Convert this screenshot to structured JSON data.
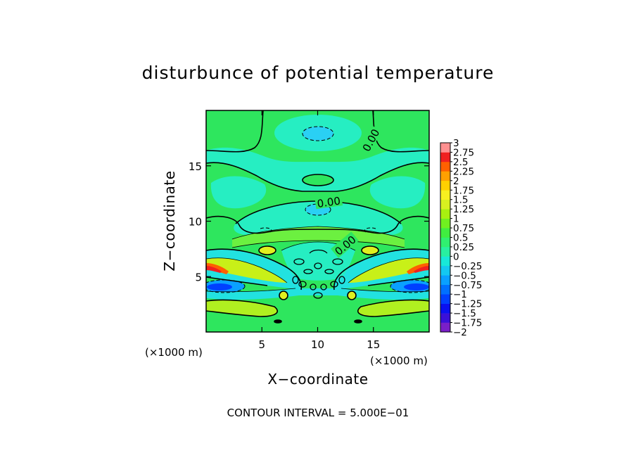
{
  "chart_data": {
    "type": "heatmap",
    "title": "disturbunce of potential temperature",
    "xlabel": "X−coordinate",
    "ylabel": "Z−coordinate",
    "x_unit": "(×1000 m)",
    "z_unit": "(×1000 m)",
    "xlim": [
      0,
      20
    ],
    "ylim": [
      0,
      20
    ],
    "x_ticks": [
      5,
      10,
      15
    ],
    "x_tick_labels": [
      "5",
      "10",
      "15"
    ],
    "y_ticks": [
      5,
      10,
      15
    ],
    "y_tick_labels": [
      "5",
      "10",
      "15"
    ],
    "contour_labels": [
      {
        "text": "0.00",
        "x": 14.8,
        "z": 17.3
      },
      {
        "text": "0.00",
        "x": 11.0,
        "z": 11.7
      },
      {
        "text": "0.00",
        "x": 12.5,
        "z": 7.8
      }
    ],
    "colorbar": {
      "levels": [
        -2,
        -1.75,
        -1.5,
        -1.25,
        -1,
        -0.75,
        -0.5,
        -0.25,
        0,
        0.25,
        0.5,
        0.75,
        1,
        1.25,
        1.5,
        1.75,
        2,
        2.25,
        2.5,
        2.75,
        3
      ],
      "tick_labels": [
        "−2",
        "−1.75",
        "−1.5",
        "−1.25",
        "−1",
        "−0.75",
        "−0.5",
        "−0.25",
        "0",
        "0.25",
        "0.5",
        "0.75",
        "1",
        "1.25",
        "1.5",
        "1.75",
        "2",
        "2.25",
        "2.5",
        "2.75",
        "3"
      ],
      "colors": [
        "#7a1fc8",
        "#3a10d8",
        "#0a10f0",
        "#0040ff",
        "#0070ff",
        "#0aa0ff",
        "#14c8f0",
        "#18e8d8",
        "#28f0a0",
        "#30f070",
        "#40ee40",
        "#70f020",
        "#a8f010",
        "#d8f020",
        "#f8f020",
        "#ffd000",
        "#ffa000",
        "#ff6000",
        "#f02020",
        "#ff9090"
      ]
    },
    "contour_interval_text": "CONTOUR INTERVAL = 5.000E−01"
  }
}
